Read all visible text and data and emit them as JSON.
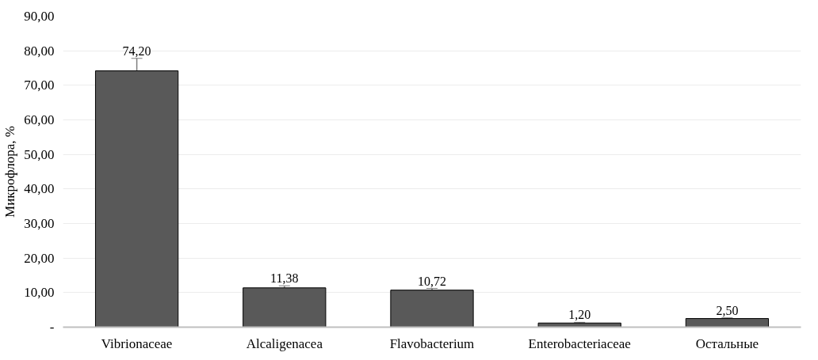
{
  "chart_data": {
    "type": "bar",
    "ylabel": "Микрофлора, %",
    "categories": [
      "Vibrionaceae",
      "Alcaligenacea",
      "Flavobacterium",
      "Enterobacteriaceae",
      "Остальные"
    ],
    "values": [
      74.2,
      11.38,
      10.72,
      1.2,
      2.5
    ],
    "value_labels": [
      "74,20",
      "11,38",
      "10,72",
      "1,20",
      "2,50"
    ],
    "errors": [
      3.6,
      0.6,
      0.5,
      0.2,
      0.2
    ],
    "color": "#595959",
    "ylim": [
      0,
      90
    ],
    "yticks": [
      {
        "value": 0,
        "label": "-"
      },
      {
        "value": 10,
        "label": "10,00"
      },
      {
        "value": 20,
        "label": "20,00"
      },
      {
        "value": 30,
        "label": "30,00"
      },
      {
        "value": 40,
        "label": "40,00"
      },
      {
        "value": 50,
        "label": "50,00"
      },
      {
        "value": 60,
        "label": "60,00"
      },
      {
        "value": 70,
        "label": "70,00"
      },
      {
        "value": 80,
        "label": "80,00"
      },
      {
        "value": 90,
        "label": "90,00"
      }
    ],
    "grid": "y"
  }
}
